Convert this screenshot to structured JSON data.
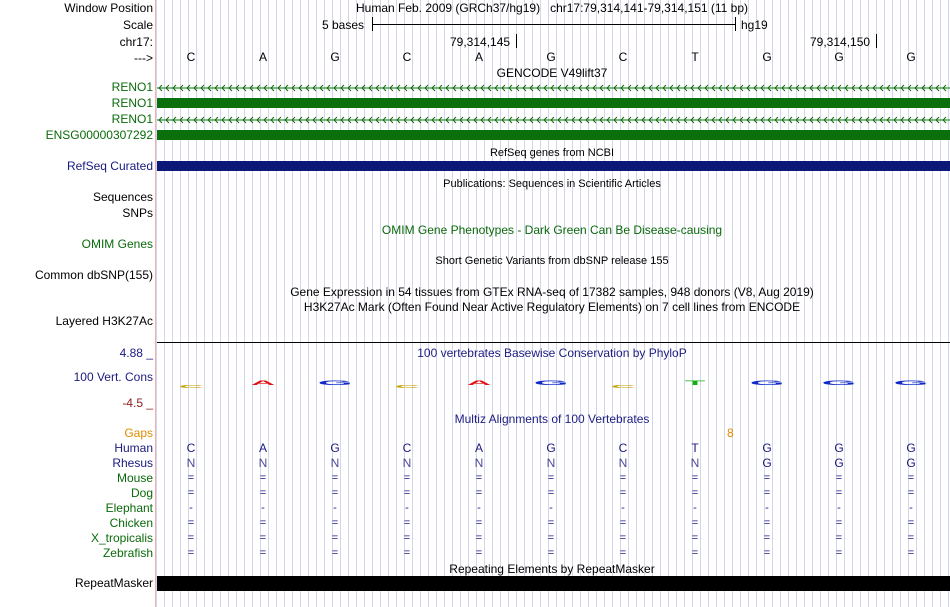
{
  "labels": {
    "window_position": "Window Position",
    "scale": "Scale",
    "chrom": "chr17:",
    "strand": "--->",
    "reno1_a": "RENO1",
    "reno1_b": "RENO1",
    "reno1_c": "RENO1",
    "ensg": "ENSG00000307292",
    "refseq": "RefSeq Curated",
    "sequences": "Sequences",
    "snps": "SNPs",
    "omim": "OMIM Genes",
    "common_dbsnp": "Common dbSNP(155)",
    "h3k27ac": "Layered H3K27Ac",
    "cons_max": "4.88 _",
    "cons_name": "100 Vert. Cons",
    "cons_min": "-4.5 _",
    "gaps": "Gaps",
    "human": "Human",
    "rhesus": "Rhesus",
    "mouse": "Mouse",
    "dog": "Dog",
    "elephant": "Elephant",
    "chicken": "Chicken",
    "x_tropicalis": "X_tropicalis",
    "zebrafish": "Zebrafish",
    "repeatmasker": "RepeatMasker"
  },
  "header": {
    "assembly": "Human Feb. 2009 (GRCh37/hg19)   chr17:79,314,141-79,314,151 (11 bp)",
    "scale_text": "5 bases",
    "scale_db": "hg19",
    "pos1": "79,314,145",
    "pos2": "79,314,150"
  },
  "bases": [
    "C",
    "A",
    "G",
    "C",
    "A",
    "G",
    "C",
    "T",
    "G",
    "G",
    "G"
  ],
  "titles": {
    "gencode": "GENCODE V49lift37",
    "refseq": "RefSeq genes from NCBI",
    "publications": "Publications: Sequences in Scientific Articles",
    "omim": "OMIM Gene Phenotypes - Dark Green Can Be Disease-causing",
    "dbsnp": "Short Genetic Variants from dbSNP release 155",
    "gtex": "Gene Expression in 54 tissues from GTEx RNA-seq of 17382 samples, 948 donors (V8, Aug 2019)",
    "h3k27ac": "H3K27Ac Mark (Often Found Near Active Regulatory Elements) on 7 cell lines from ENCODE",
    "phylop": "100 vertebrates Basewise Conservation by PhyloP",
    "multiz": "Multiz Alignments of 100 Vertebrates",
    "repeatmasker": "Repeating Elements by RepeatMasker"
  },
  "gap_count": "8",
  "alignment": {
    "human": [
      "C",
      "A",
      "G",
      "C",
      "A",
      "G",
      "C",
      "T",
      "G",
      "G",
      "G"
    ],
    "rhesus": [
      "N",
      "N",
      "N",
      "N",
      "N",
      "N",
      "N",
      "N",
      "G",
      "G",
      "G"
    ],
    "mouse": [
      "=",
      "=",
      "=",
      "=",
      "=",
      "=",
      "=",
      "=",
      "=",
      "=",
      "="
    ],
    "dog": [
      "=",
      "=",
      "=",
      "=",
      "=",
      "=",
      "=",
      "=",
      "=",
      "=",
      "="
    ],
    "elephant": [
      "-",
      "-",
      "-",
      "-",
      "-",
      "-",
      "-",
      "-",
      "-",
      "-",
      "-"
    ],
    "chicken": [
      "=",
      "=",
      "=",
      "=",
      "=",
      "=",
      "=",
      "=",
      "=",
      "=",
      "="
    ],
    "x_tropicalis": [
      "=",
      "=",
      "=",
      "=",
      "=",
      "=",
      "=",
      "=",
      "=",
      "=",
      "="
    ],
    "zebrafish": [
      "=",
      "=",
      "=",
      "=",
      "=",
      "=",
      "=",
      "=",
      "=",
      "=",
      "="
    ]
  },
  "phylop_logo": [
    "C",
    "A",
    "G",
    "C",
    "A",
    "G",
    "C",
    "T",
    "G",
    "G",
    "G"
  ],
  "colors": {
    "gene_green": "#0b6f0b",
    "refseq_navy": "#0c1878",
    "label_green": "#0a6a0a",
    "label_navy": "#1a1a80",
    "gap_orange": "#e08a00",
    "track_title_navy": "#1c1c80",
    "cons_maroon": "#8b1c1c",
    "rhesus_blue": "#4a4a98",
    "grid": "#d4d4ee",
    "separator": "#f0b0b0"
  }
}
